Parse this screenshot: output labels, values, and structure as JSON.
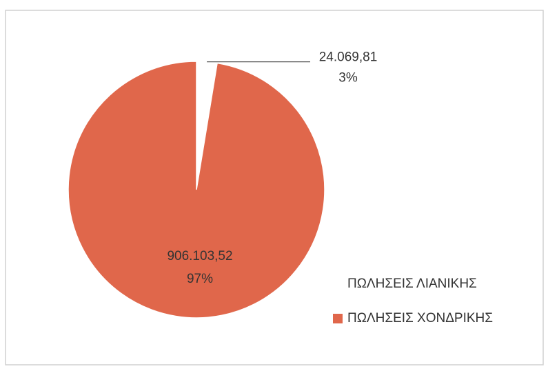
{
  "chart_data": {
    "type": "pie",
    "categories": [
      "ΠΩΛΗΣΕΙΣ ΛΙΑΝΙΚΗΣ",
      "ΠΩΛΗΣΕΙΣ ΧΟΝΔΡΙΚΗΣ"
    ],
    "values": [
      24069.81,
      906103.52
    ],
    "value_labels": [
      "24.069,81",
      "906.103,52"
    ],
    "percent_labels": [
      "3%",
      "97%"
    ],
    "colors": [
      "#ffffff",
      "#e0674b"
    ],
    "legend": "right"
  }
}
